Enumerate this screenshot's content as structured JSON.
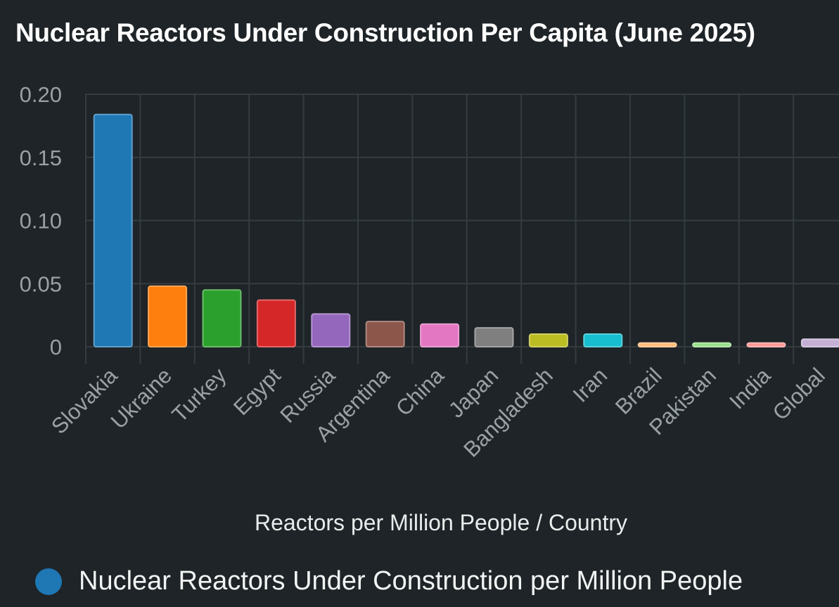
{
  "chart_data": {
    "type": "bar",
    "title": "Nuclear Reactors Under Construction Per Capita (June 2025)",
    "xlabel": "Reactors per Million People / Country",
    "ylabel": "",
    "categories": [
      "Slovakia",
      "Ukraine",
      "Turkey",
      "Egypt",
      "Russia",
      "Argentina",
      "China",
      "Japan",
      "Bangladesh",
      "Iran",
      "Brazil",
      "Pakistan",
      "India",
      "Global"
    ],
    "series": [
      {
        "name": "Nuclear Reactors Under Construction per Million People",
        "values": [
          0.184,
          0.048,
          0.045,
          0.037,
          0.026,
          0.02,
          0.018,
          0.015,
          0.01,
          0.01,
          0.003,
          0.003,
          0.003,
          0.006
        ]
      }
    ],
    "bar_colors": [
      "#1f77b4",
      "#ff7f0e",
      "#2ca02c",
      "#d62728",
      "#9467bd",
      "#8c564b",
      "#e377c2",
      "#7f7f7f",
      "#bcbd22",
      "#17becf",
      "#ffbb78",
      "#98df8a",
      "#ff9896",
      "#c5b0d5"
    ],
    "legend_color": "#1f77b4",
    "ylim": [
      0,
      0.2
    ],
    "yticks": [
      0.2,
      0.15,
      0.1,
      0.05,
      0
    ],
    "ytick_labels": [
      "0.20",
      "0.15",
      "0.10",
      "0.05",
      "0"
    ],
    "grid": true,
    "legend_position": "bottom"
  }
}
